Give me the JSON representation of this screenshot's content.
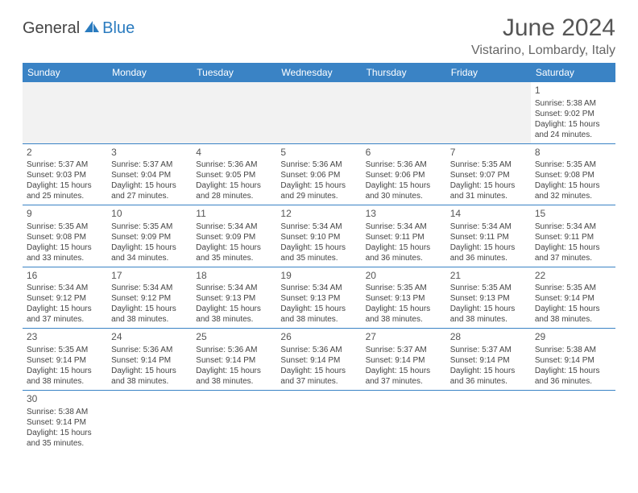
{
  "logo": {
    "text1": "General",
    "text2": "Blue"
  },
  "title": "June 2024",
  "location": "Vistarino, Lombardy, Italy",
  "colors": {
    "header_bg": "#3a83c5",
    "header_text": "#ffffff",
    "empty_bg": "#f2f2f2",
    "border": "#3a83c5",
    "text": "#444444"
  },
  "day_headers": [
    "Sunday",
    "Monday",
    "Tuesday",
    "Wednesday",
    "Thursday",
    "Friday",
    "Saturday"
  ],
  "weeks": [
    [
      null,
      null,
      null,
      null,
      null,
      null,
      {
        "n": "1",
        "sr": "Sunrise: 5:38 AM",
        "ss": "Sunset: 9:02 PM",
        "d1": "Daylight: 15 hours",
        "d2": "and 24 minutes."
      }
    ],
    [
      {
        "n": "2",
        "sr": "Sunrise: 5:37 AM",
        "ss": "Sunset: 9:03 PM",
        "d1": "Daylight: 15 hours",
        "d2": "and 25 minutes."
      },
      {
        "n": "3",
        "sr": "Sunrise: 5:37 AM",
        "ss": "Sunset: 9:04 PM",
        "d1": "Daylight: 15 hours",
        "d2": "and 27 minutes."
      },
      {
        "n": "4",
        "sr": "Sunrise: 5:36 AM",
        "ss": "Sunset: 9:05 PM",
        "d1": "Daylight: 15 hours",
        "d2": "and 28 minutes."
      },
      {
        "n": "5",
        "sr": "Sunrise: 5:36 AM",
        "ss": "Sunset: 9:06 PM",
        "d1": "Daylight: 15 hours",
        "d2": "and 29 minutes."
      },
      {
        "n": "6",
        "sr": "Sunrise: 5:36 AM",
        "ss": "Sunset: 9:06 PM",
        "d1": "Daylight: 15 hours",
        "d2": "and 30 minutes."
      },
      {
        "n": "7",
        "sr": "Sunrise: 5:35 AM",
        "ss": "Sunset: 9:07 PM",
        "d1": "Daylight: 15 hours",
        "d2": "and 31 minutes."
      },
      {
        "n": "8",
        "sr": "Sunrise: 5:35 AM",
        "ss": "Sunset: 9:08 PM",
        "d1": "Daylight: 15 hours",
        "d2": "and 32 minutes."
      }
    ],
    [
      {
        "n": "9",
        "sr": "Sunrise: 5:35 AM",
        "ss": "Sunset: 9:08 PM",
        "d1": "Daylight: 15 hours",
        "d2": "and 33 minutes."
      },
      {
        "n": "10",
        "sr": "Sunrise: 5:35 AM",
        "ss": "Sunset: 9:09 PM",
        "d1": "Daylight: 15 hours",
        "d2": "and 34 minutes."
      },
      {
        "n": "11",
        "sr": "Sunrise: 5:34 AM",
        "ss": "Sunset: 9:09 PM",
        "d1": "Daylight: 15 hours",
        "d2": "and 35 minutes."
      },
      {
        "n": "12",
        "sr": "Sunrise: 5:34 AM",
        "ss": "Sunset: 9:10 PM",
        "d1": "Daylight: 15 hours",
        "d2": "and 35 minutes."
      },
      {
        "n": "13",
        "sr": "Sunrise: 5:34 AM",
        "ss": "Sunset: 9:11 PM",
        "d1": "Daylight: 15 hours",
        "d2": "and 36 minutes."
      },
      {
        "n": "14",
        "sr": "Sunrise: 5:34 AM",
        "ss": "Sunset: 9:11 PM",
        "d1": "Daylight: 15 hours",
        "d2": "and 36 minutes."
      },
      {
        "n": "15",
        "sr": "Sunrise: 5:34 AM",
        "ss": "Sunset: 9:11 PM",
        "d1": "Daylight: 15 hours",
        "d2": "and 37 minutes."
      }
    ],
    [
      {
        "n": "16",
        "sr": "Sunrise: 5:34 AM",
        "ss": "Sunset: 9:12 PM",
        "d1": "Daylight: 15 hours",
        "d2": "and 37 minutes."
      },
      {
        "n": "17",
        "sr": "Sunrise: 5:34 AM",
        "ss": "Sunset: 9:12 PM",
        "d1": "Daylight: 15 hours",
        "d2": "and 38 minutes."
      },
      {
        "n": "18",
        "sr": "Sunrise: 5:34 AM",
        "ss": "Sunset: 9:13 PM",
        "d1": "Daylight: 15 hours",
        "d2": "and 38 minutes."
      },
      {
        "n": "19",
        "sr": "Sunrise: 5:34 AM",
        "ss": "Sunset: 9:13 PM",
        "d1": "Daylight: 15 hours",
        "d2": "and 38 minutes."
      },
      {
        "n": "20",
        "sr": "Sunrise: 5:35 AM",
        "ss": "Sunset: 9:13 PM",
        "d1": "Daylight: 15 hours",
        "d2": "and 38 minutes."
      },
      {
        "n": "21",
        "sr": "Sunrise: 5:35 AM",
        "ss": "Sunset: 9:13 PM",
        "d1": "Daylight: 15 hours",
        "d2": "and 38 minutes."
      },
      {
        "n": "22",
        "sr": "Sunrise: 5:35 AM",
        "ss": "Sunset: 9:14 PM",
        "d1": "Daylight: 15 hours",
        "d2": "and 38 minutes."
      }
    ],
    [
      {
        "n": "23",
        "sr": "Sunrise: 5:35 AM",
        "ss": "Sunset: 9:14 PM",
        "d1": "Daylight: 15 hours",
        "d2": "and 38 minutes."
      },
      {
        "n": "24",
        "sr": "Sunrise: 5:36 AM",
        "ss": "Sunset: 9:14 PM",
        "d1": "Daylight: 15 hours",
        "d2": "and 38 minutes."
      },
      {
        "n": "25",
        "sr": "Sunrise: 5:36 AM",
        "ss": "Sunset: 9:14 PM",
        "d1": "Daylight: 15 hours",
        "d2": "and 38 minutes."
      },
      {
        "n": "26",
        "sr": "Sunrise: 5:36 AM",
        "ss": "Sunset: 9:14 PM",
        "d1": "Daylight: 15 hours",
        "d2": "and 37 minutes."
      },
      {
        "n": "27",
        "sr": "Sunrise: 5:37 AM",
        "ss": "Sunset: 9:14 PM",
        "d1": "Daylight: 15 hours",
        "d2": "and 37 minutes."
      },
      {
        "n": "28",
        "sr": "Sunrise: 5:37 AM",
        "ss": "Sunset: 9:14 PM",
        "d1": "Daylight: 15 hours",
        "d2": "and 36 minutes."
      },
      {
        "n": "29",
        "sr": "Sunrise: 5:38 AM",
        "ss": "Sunset: 9:14 PM",
        "d1": "Daylight: 15 hours",
        "d2": "and 36 minutes."
      }
    ],
    [
      {
        "n": "30",
        "sr": "Sunrise: 5:38 AM",
        "ss": "Sunset: 9:14 PM",
        "d1": "Daylight: 15 hours",
        "d2": "and 35 minutes."
      },
      null,
      null,
      null,
      null,
      null,
      null
    ]
  ]
}
